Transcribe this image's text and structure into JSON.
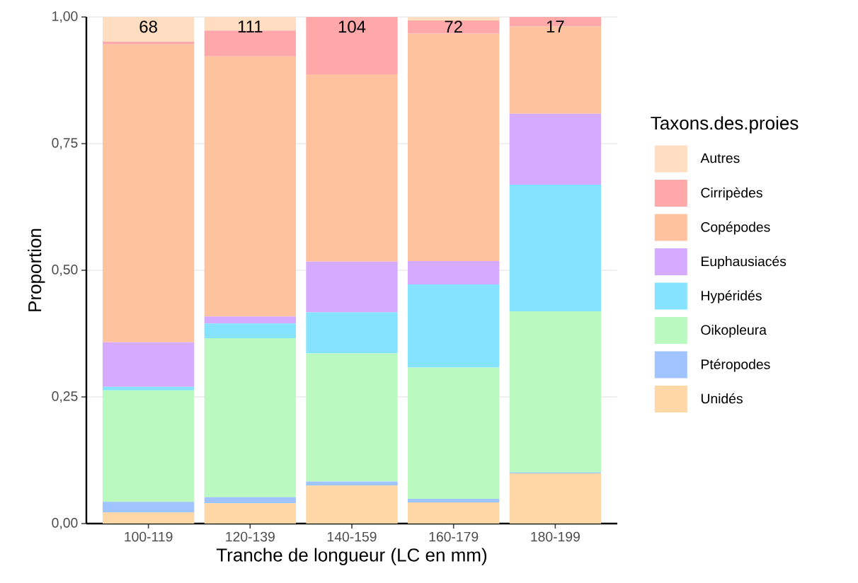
{
  "chart_data": {
    "type": "bar",
    "stacked": true,
    "xlabel": "Tranche de longueur (LC en mm)",
    "ylabel": "Proportion",
    "legend_title": "Taxons.des.proies",
    "categories": [
      "100-119",
      "120-139",
      "140-159",
      "160-179",
      "180-199"
    ],
    "series": [
      {
        "name": "Unidés",
        "color": "#ffd6a5",
        "values": [
          0.022,
          0.04,
          0.075,
          0.042,
          0.099
        ]
      },
      {
        "name": "Ptéropodes",
        "color": "#a0c4ff",
        "values": [
          0.021,
          0.012,
          0.008,
          0.007,
          0.002
        ]
      },
      {
        "name": "Oikopleura",
        "color": "#baf9c0",
        "values": [
          0.22,
          0.314,
          0.253,
          0.259,
          0.318
        ]
      },
      {
        "name": "Hypéridés",
        "color": "#85e3ff",
        "values": [
          0.007,
          0.029,
          0.081,
          0.164,
          0.25
        ]
      },
      {
        "name": "Euphausiacés",
        "color": "#d5aaff",
        "values": [
          0.088,
          0.014,
          0.1,
          0.046,
          0.14
        ]
      },
      {
        "name": "Copépodes",
        "color": "#ffc29e",
        "values": [
          0.588,
          0.513,
          0.37,
          0.449,
          0.172
        ]
      },
      {
        "name": "Cirripèdes",
        "color": "#ffa8aa",
        "values": [
          0.005,
          0.051,
          0.113,
          0.026,
          0.019
        ]
      },
      {
        "name": "Autres",
        "color": "#ffddc1",
        "values": [
          0.049,
          0.027,
          0.0,
          0.007,
          0.0
        ]
      }
    ],
    "ylim": [
      0,
      1
    ],
    "yticks": [
      {
        "value": 0,
        "label": "0,00"
      },
      {
        "value": 0.25,
        "label": "0,25"
      },
      {
        "value": 0.5,
        "label": "0,50"
      },
      {
        "value": 0.75,
        "label": "0,75"
      },
      {
        "value": 1,
        "label": "1,00"
      }
    ],
    "grid": "y",
    "legend": "right",
    "annotations": [
      "68",
      "111",
      "104",
      "72",
      "17"
    ]
  }
}
